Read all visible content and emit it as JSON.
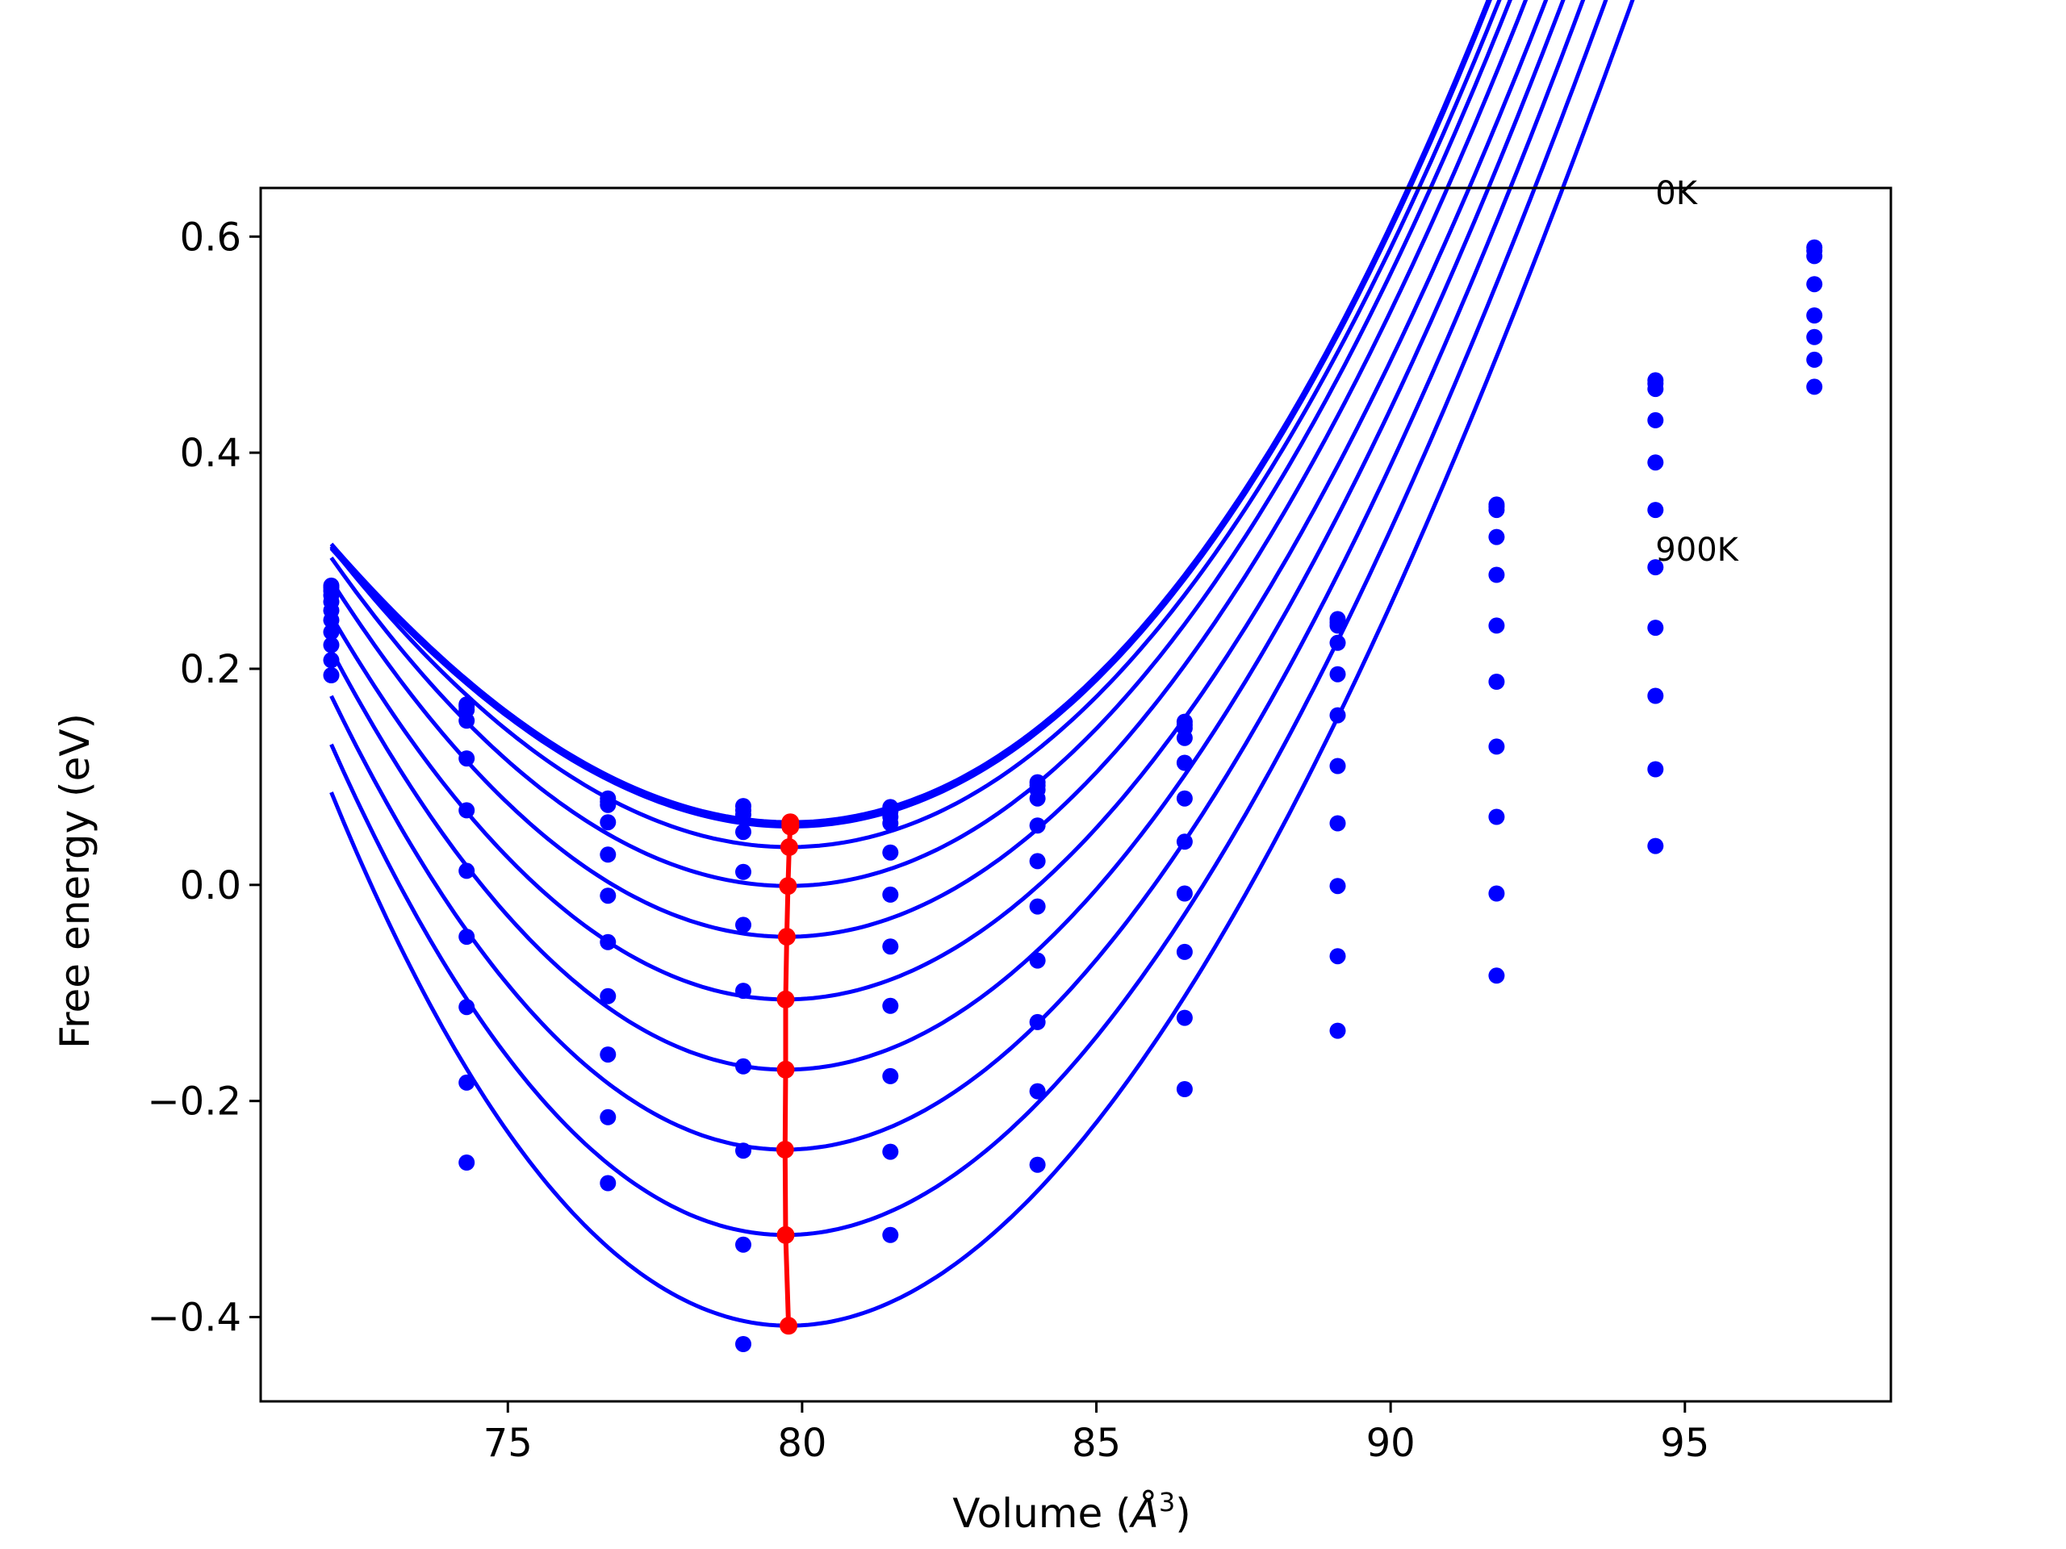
{
  "chart_data": {
    "type": "line",
    "xlabel": "Volume (",
    "xlabel_unit": "Å",
    "xlabel_exp": "3",
    "xlabel_close": ")",
    "ylabel": "Free energy (eV)",
    "xlim": [
      70.8,
      98.5
    ],
    "ylim": [
      -0.478,
      0.645
    ],
    "xticks": [
      {
        "value": 75,
        "label": "75"
      },
      {
        "value": 80,
        "label": "80"
      },
      {
        "value": 85,
        "label": "85"
      },
      {
        "value": 90,
        "label": "90"
      },
      {
        "value": 95,
        "label": "95"
      }
    ],
    "yticks": [
      {
        "value": -0.4,
        "label": "−0.4"
      },
      {
        "value": -0.2,
        "label": "−0.2"
      },
      {
        "value": 0.0,
        "label": "0.0"
      },
      {
        "value": 0.2,
        "label": "0.2"
      },
      {
        "value": 0.4,
        "label": "0.4"
      },
      {
        "value": 0.6,
        "label": "0.6"
      }
    ],
    "volumes": [
      72.0,
      74.3,
      76.7,
      79.0,
      81.5,
      84.0,
      86.5,
      89.1,
      91.8,
      94.5,
      97.2
    ],
    "curve_range": [
      72.0,
      97.2
    ],
    "series": [
      {
        "eq_volume": 79.8,
        "min_energy": 0.058,
        "A": 0.0047,
        "B": 6e-05,
        "points": [
          0.277,
          0.167,
          0.08,
          0.073,
          0.072,
          0.095,
          0.151,
          0.246,
          0.352,
          0.467,
          0.59
        ]
      },
      {
        "eq_volume": 79.8,
        "min_energy": 0.056,
        "A": 0.0047,
        "B": 6e-05,
        "points": [
          0.275,
          0.165,
          0.077,
          0.069,
          0.068,
          0.092,
          0.148,
          0.243,
          0.35,
          0.464,
          0.587
        ]
      },
      {
        "eq_volume": 79.8,
        "min_energy": 0.054,
        "A": 0.0047,
        "B": 6e-05,
        "points": [
          0.272,
          0.162,
          0.074,
          0.065,
          0.063,
          0.088,
          0.145,
          0.24,
          0.347,
          0.459,
          0.582
        ]
      },
      {
        "eq_volume": 79.78,
        "min_energy": 0.035,
        "A": 0.0049,
        "B": 4e-05,
        "points": [
          0.268,
          0.152,
          0.058,
          0.049,
          0.057,
          0.08,
          0.136,
          0.224,
          0.322,
          0.43,
          0.556
        ]
      },
      {
        "eq_volume": 79.76,
        "min_energy": -0.001,
        "A": 0.0052,
        "B": 2e-05,
        "points": [
          0.262,
          0.117,
          0.028,
          0.012,
          0.03,
          0.055,
          0.113,
          0.195,
          0.287,
          0.391,
          0.527
        ]
      },
      {
        "eq_volume": 79.74,
        "min_energy": -0.048,
        "A": 0.0055,
        "B": 0.0,
        "points": [
          0.254,
          0.069,
          -0.01,
          -0.037,
          -0.009,
          0.022,
          0.08,
          0.157,
          0.24,
          0.347,
          0.507
        ]
      },
      {
        "eq_volume": 79.72,
        "min_energy": -0.106,
        "A": 0.0058,
        "B": -2e-05,
        "points": [
          0.245,
          0.013,
          -0.053,
          -0.098,
          -0.057,
          -0.02,
          0.04,
          0.11,
          0.188,
          0.294,
          0.486
        ]
      },
      {
        "eq_volume": 79.72,
        "min_energy": -0.171,
        "A": 0.0062,
        "B": -4e-05,
        "points": [
          0.234,
          -0.048,
          -0.103,
          -0.168,
          -0.112,
          -0.07,
          -0.008,
          0.057,
          0.128,
          0.238,
          0.461
        ]
      },
      {
        "eq_volume": 79.71,
        "min_energy": -0.245,
        "A": 0.0066,
        "B": -6e-05,
        "points": [
          0.222,
          -0.113,
          -0.157,
          -0.246,
          -0.177,
          -0.127,
          -0.062,
          -0.001,
          0.063,
          0.175,
          null
        ]
      },
      {
        "eq_volume": 79.72,
        "min_energy": -0.324,
        "A": 0.007,
        "B": -8e-05,
        "points": [
          0.208,
          -0.183,
          -0.215,
          -0.333,
          -0.247,
          -0.191,
          -0.123,
          -0.066,
          -0.008,
          0.107,
          null
        ]
      },
      {
        "eq_volume": 79.77,
        "min_energy": -0.408,
        "A": 0.0074,
        "B": -0.0001,
        "points": [
          0.194,
          -0.257,
          -0.276,
          -0.425,
          -0.324,
          -0.259,
          -0.189,
          -0.135,
          -0.084,
          0.036,
          null
        ]
      }
    ],
    "min_path": {
      "x": [
        79.8,
        79.8,
        79.8,
        79.78,
        79.76,
        79.74,
        79.72,
        79.72,
        79.71,
        79.72,
        79.77
      ],
      "y": [
        0.058,
        0.056,
        0.054,
        0.035,
        -0.001,
        -0.048,
        -0.106,
        -0.171,
        -0.245,
        -0.324,
        -0.408
      ]
    },
    "annotations": [
      {
        "text": "0K",
        "x": 94.5,
        "y": 0.63
      },
      {
        "text": "900K",
        "x": 94.5,
        "y": 0.3
      }
    ],
    "colors": {
      "series": "#0000ff",
      "min_path": "#ff0000",
      "axes": "#000000"
    },
    "grid": false,
    "legend": "none"
  }
}
